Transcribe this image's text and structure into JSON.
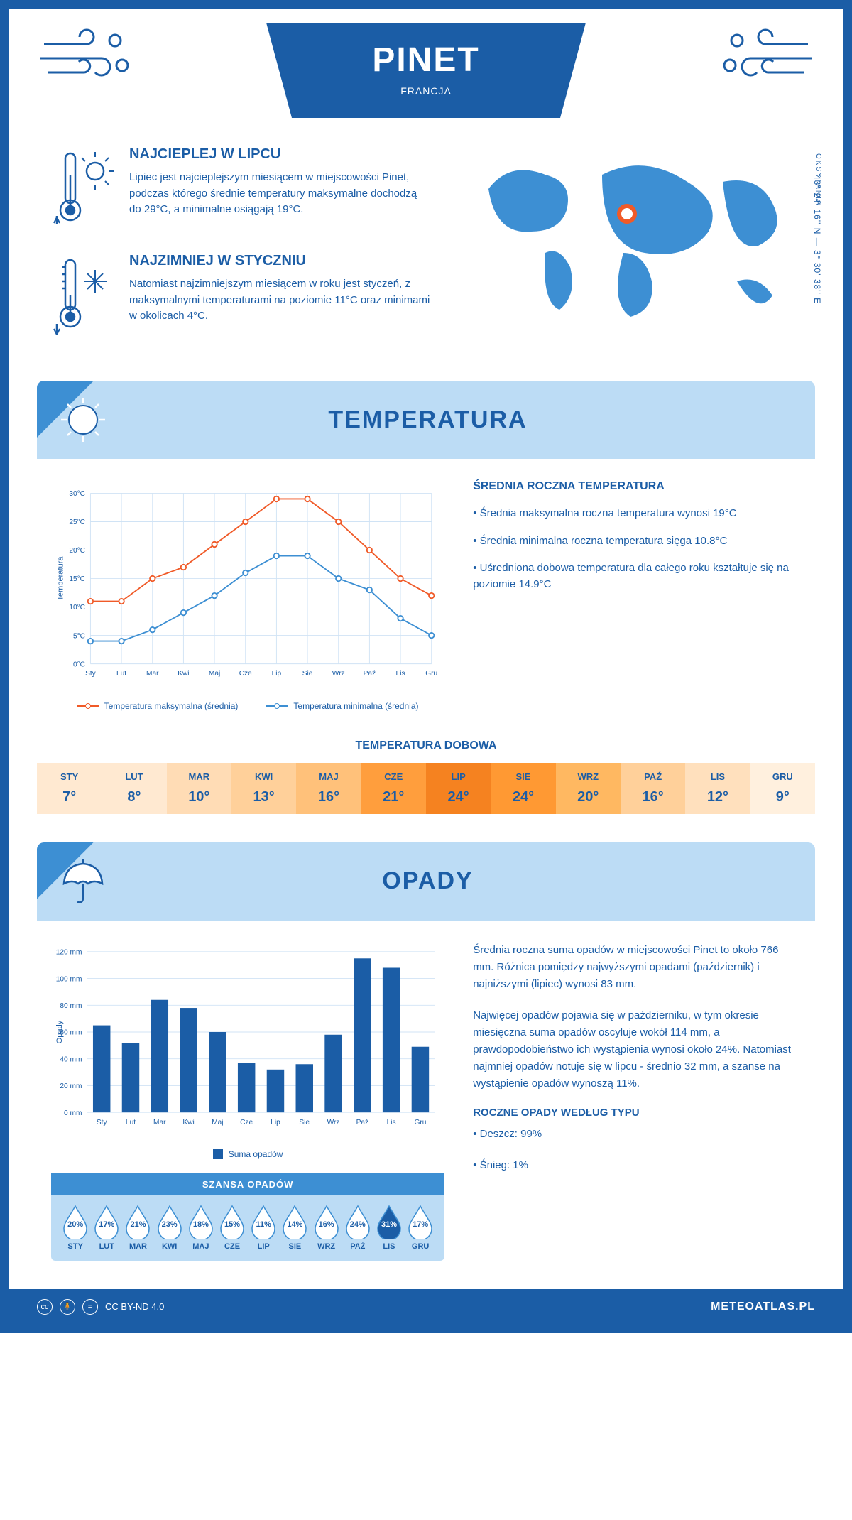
{
  "header": {
    "city": "PINET",
    "country": "FRANCJA"
  },
  "coords": "43° 24' 16'' N — 3° 30' 38'' E",
  "region": "OKSYTANIA",
  "warm": {
    "title": "NAJCIEPLEJ W LIPCU",
    "text": "Lipiec jest najcieplejszym miesiącem w miejscowości Pinet, podczas którego średnie temperatury maksymalne dochodzą do 29°C, a minimalne osiągają 19°C."
  },
  "cold": {
    "title": "NAJZIMNIEJ W STYCZNIU",
    "text": "Natomiast najzimniejszym miesiącem w roku jest styczeń, z maksymalnymi temperaturami na poziomie 11°C oraz minimami w okolicach 4°C."
  },
  "temp_section": {
    "title": "TEMPERATURA",
    "side_title": "ŚREDNIA ROCZNA TEMPERATURA",
    "bullets": [
      "• Średnia maksymalna roczna temperatura wynosi 19°C",
      "• Średnia minimalna roczna temperatura sięga 10.8°C",
      "• Uśredniona dobowa temperatura dla całego roku kształtuje się na poziomie 14.9°C"
    ],
    "chart": {
      "months": [
        "Sty",
        "Lut",
        "Mar",
        "Kwi",
        "Maj",
        "Cze",
        "Lip",
        "Sie",
        "Wrz",
        "Paź",
        "Lis",
        "Gru"
      ],
      "max_series": [
        11,
        11,
        15,
        17,
        21,
        25,
        29,
        29,
        25,
        20,
        15,
        12
      ],
      "min_series": [
        4,
        4,
        6,
        9,
        12,
        16,
        19,
        19,
        15,
        13,
        8,
        5
      ],
      "max_color": "#f05a28",
      "min_color": "#3d8fd3",
      "ylabel": "Temperatura",
      "ylim": [
        0,
        30
      ],
      "ytick_step": 5,
      "grid_color": "#d0e3f5",
      "legend_max": "Temperatura maksymalna (średnia)",
      "legend_min": "Temperatura minimalna (średnia)"
    }
  },
  "dobowa": {
    "title": "TEMPERATURA DOBOWA",
    "months": [
      "STY",
      "LUT",
      "MAR",
      "KWI",
      "MAJ",
      "CZE",
      "LIP",
      "SIE",
      "WRZ",
      "PAŹ",
      "LIS",
      "GRU"
    ],
    "values": [
      "7°",
      "8°",
      "10°",
      "13°",
      "16°",
      "21°",
      "24°",
      "24°",
      "20°",
      "16°",
      "12°",
      "9°"
    ],
    "colors": [
      "#ffe9d1",
      "#ffe9d1",
      "#ffdcb5",
      "#ffd09a",
      "#ffc17a",
      "#ff9e3d",
      "#f58220",
      "#ff9933",
      "#ffb861",
      "#ffd09a",
      "#ffe0bd",
      "#fff0de"
    ]
  },
  "opady_section": {
    "title": "OPADY",
    "chart": {
      "months": [
        "Sty",
        "Lut",
        "Mar",
        "Kwi",
        "Maj",
        "Cze",
        "Lip",
        "Sie",
        "Wrz",
        "Paź",
        "Lis",
        "Gru"
      ],
      "values": [
        65,
        52,
        84,
        78,
        60,
        37,
        32,
        36,
        58,
        115,
        108,
        49
      ],
      "ylim": [
        0,
        120
      ],
      "ytick_step": 20,
      "bar_color": "#1b5da6",
      "grid_color": "#d0e3f5",
      "ylabel": "Opady",
      "legend": "Suma opadów"
    },
    "para1": "Średnia roczna suma opadów w miejscowości Pinet to około 766 mm. Różnica pomiędzy najwyższymi opadami (październik) i najniższymi (lipiec) wynosi 83 mm.",
    "para2": "Najwięcej opadów pojawia się w październiku, w tym okresie miesięczna suma opadów oscyluje wokół 114 mm, a prawdopodobieństwo ich wystąpienia wynosi około 24%. Natomiast najmniej opadów notuje się w lipcu - średnio 32 mm, a szanse na wystąpienie opadów wynoszą 11%.",
    "type_title": "ROCZNE OPADY WEDŁUG TYPU",
    "type_bullets": [
      "• Deszcz: 99%",
      "• Śnieg: 1%"
    ]
  },
  "szansa": {
    "title": "SZANSA OPADÓW",
    "months": [
      "STY",
      "LUT",
      "MAR",
      "KWI",
      "MAJ",
      "CZE",
      "LIP",
      "SIE",
      "WRZ",
      "PAŹ",
      "LIS",
      "GRU"
    ],
    "values": [
      "20%",
      "17%",
      "21%",
      "23%",
      "18%",
      "15%",
      "11%",
      "14%",
      "16%",
      "24%",
      "31%",
      "17%"
    ],
    "highlight_index": 10,
    "drop_fill": "#ffffff",
    "drop_stroke": "#3d8fd3",
    "highlight_fill": "#1b5da6",
    "text_color": "#1b5da6",
    "highlight_text_color": "#ffffff"
  },
  "footer": {
    "license": "CC BY-ND 4.0",
    "site": "METEOATLAS.PL"
  }
}
